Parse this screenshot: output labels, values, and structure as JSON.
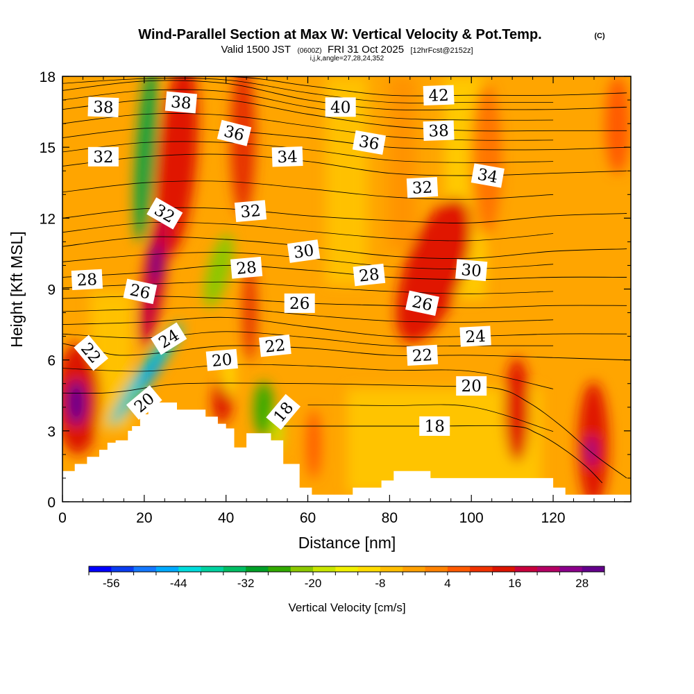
{
  "title": {
    "main": "Wind-Parallel Section at Max W: Vertical Velocity & Pot.Temp.",
    "copyright": "(C)",
    "sub_prefix": "Valid 1500 JST",
    "sub_utc": "(0600Z)",
    "sub_date": "FRI 31 Oct 2025",
    "sub_fcst": "[12hrFcst@2152z]",
    "indices": "i,j,k,angle=27,28,24,352"
  },
  "chart_data": {
    "type": "heatmap",
    "xlabel": "Distance [nm]",
    "ylabel": "Height [Kft MSL]",
    "xlim": [
      0,
      139
    ],
    "ylim": [
      0,
      18
    ],
    "xticks": [
      0,
      20,
      40,
      60,
      80,
      100,
      120
    ],
    "yticks": [
      0,
      3,
      6,
      9,
      12,
      15,
      18
    ],
    "colorbar": {
      "title": "Vertical Velocity [cm/s]",
      "min": -60,
      "max": 32,
      "step": 4,
      "ticks": [
        -56,
        -44,
        -32,
        -20,
        -8,
        4,
        16,
        28
      ],
      "colors": [
        "#0000ff",
        "#0a3cf0",
        "#1478ff",
        "#00aaff",
        "#00dcdc",
        "#00d2a0",
        "#00be64",
        "#00a028",
        "#32aa00",
        "#8cc800",
        "#c8e600",
        "#f0f000",
        "#ffdc00",
        "#ffbe00",
        "#ffa000",
        "#ff8200",
        "#ff5a00",
        "#f03200",
        "#dc1400",
        "#c8003c",
        "#b40064",
        "#8c008c",
        "#64008c"
      ]
    },
    "wind_shear_columns": [
      {
        "x": 4,
        "y": 4.2,
        "value": 28
      },
      {
        "x": 21,
        "y": 10,
        "value": 28
      },
      {
        "x": 28,
        "y": 14,
        "value": 16
      },
      {
        "x": 44,
        "y": 14,
        "value": 20
      },
      {
        "x": 91,
        "y": 9,
        "value": 16
      },
      {
        "x": 111,
        "y": 4,
        "value": 16
      },
      {
        "x": 130,
        "y": 2,
        "value": 28
      },
      {
        "x": 20,
        "y": 14,
        "value": -32
      },
      {
        "x": 23,
        "y": 5,
        "value": -40
      },
      {
        "x": 38,
        "y": 10,
        "value": -20
      },
      {
        "x": 49,
        "y": 4,
        "value": -28
      }
    ],
    "terrain_profile": [
      [
        0,
        1.3
      ],
      [
        3,
        1.3
      ],
      [
        3,
        1.6
      ],
      [
        6,
        1.6
      ],
      [
        6,
        1.9
      ],
      [
        9,
        1.9
      ],
      [
        9,
        2.2
      ],
      [
        11,
        2.2
      ],
      [
        11,
        2.5
      ],
      [
        13,
        2.5
      ],
      [
        13,
        2.6
      ],
      [
        16,
        2.6
      ],
      [
        16,
        3.0
      ],
      [
        17,
        3.0
      ],
      [
        17,
        3.2
      ],
      [
        19,
        3.2
      ],
      [
        19,
        3.7
      ],
      [
        21,
        3.7
      ],
      [
        21,
        4.0
      ],
      [
        22,
        4.0
      ],
      [
        22,
        4.2
      ],
      [
        28,
        4.2
      ],
      [
        28,
        3.9
      ],
      [
        35,
        3.9
      ],
      [
        35,
        3.6
      ],
      [
        38,
        3.6
      ],
      [
        38,
        3.3
      ],
      [
        40,
        3.3
      ],
      [
        40,
        3.1
      ],
      [
        42,
        3.1
      ],
      [
        42,
        2.3
      ],
      [
        45,
        2.3
      ],
      [
        45,
        2.9
      ],
      [
        51,
        2.9
      ],
      [
        51,
        2.6
      ],
      [
        54,
        2.6
      ],
      [
        54,
        1.6
      ],
      [
        58,
        1.6
      ],
      [
        58,
        0.6
      ],
      [
        61,
        0.6
      ],
      [
        61,
        0.3
      ],
      [
        71,
        0.3
      ],
      [
        71,
        0.6
      ],
      [
        78,
        0.6
      ],
      [
        78,
        0.9
      ],
      [
        81,
        0.9
      ],
      [
        81,
        1.3
      ],
      [
        90,
        1.3
      ],
      [
        90,
        1.0
      ],
      [
        120,
        1.0
      ],
      [
        120,
        0.6
      ],
      [
        123,
        0.6
      ],
      [
        123,
        0.3
      ],
      [
        139,
        0.3
      ]
    ],
    "isentropes": [
      {
        "theta": 18,
        "label_x": 91,
        "label_y": 3.2,
        "points": [
          [
            54,
            3.2
          ],
          [
            70,
            3.2
          ],
          [
            90,
            3.2
          ],
          [
            110,
            3.2
          ],
          [
            116,
            2.9
          ],
          [
            122,
            2.3
          ],
          [
            128,
            1.5
          ],
          [
            132,
            0.8
          ]
        ]
      },
      {
        "theta": 20,
        "label_x": 98,
        "label_y": 4.9,
        "points": [
          [
            0,
            4.6
          ],
          [
            10,
            4.6
          ],
          [
            16,
            4.7
          ],
          [
            30,
            5.0
          ],
          [
            60,
            5.0
          ],
          [
            90,
            4.9
          ],
          [
            106,
            4.8
          ],
          [
            114,
            4.2
          ],
          [
            122,
            3.2
          ],
          [
            130,
            2.0
          ],
          [
            138,
            1.0
          ]
        ]
      },
      {
        "theta": 22,
        "label_x": 88,
        "label_y": 6.2,
        "points": [
          [
            0,
            6.7
          ],
          [
            8,
            6.4
          ],
          [
            14,
            6.2
          ],
          [
            24,
            6.3
          ],
          [
            40,
            6.6
          ],
          [
            60,
            6.5
          ],
          [
            80,
            6.2
          ],
          [
            100,
            6.2
          ],
          [
            120,
            6.1
          ],
          [
            138,
            6.0
          ]
        ]
      },
      {
        "theta": 24,
        "label_x": 100,
        "label_y": 7.0,
        "points": [
          [
            0,
            7.5
          ],
          [
            20,
            7.6
          ],
          [
            40,
            7.8
          ],
          [
            60,
            7.4
          ],
          [
            80,
            7.0
          ],
          [
            100,
            7.0
          ],
          [
            120,
            7.1
          ],
          [
            138,
            7.1
          ]
        ]
      },
      {
        "theta": 26,
        "label_x": 58,
        "label_y": 8.4,
        "points": [
          [
            0,
            8.6
          ],
          [
            20,
            8.7
          ],
          [
            40,
            8.6
          ],
          [
            60,
            8.4
          ],
          [
            80,
            8.3
          ],
          [
            100,
            8.2
          ],
          [
            120,
            8.3
          ],
          [
            138,
            8.3
          ]
        ]
      },
      {
        "theta": 28,
        "label_x": 45,
        "label_y": 9.9,
        "points": [
          [
            0,
            9.5
          ],
          [
            20,
            9.7
          ],
          [
            40,
            10.0
          ],
          [
            60,
            9.8
          ],
          [
            80,
            9.5
          ],
          [
            100,
            9.4
          ],
          [
            120,
            9.5
          ],
          [
            138,
            9.5
          ]
        ]
      },
      {
        "theta": 30,
        "label_x": 59,
        "label_y": 10.6,
        "points": [
          [
            0,
            10.8
          ],
          [
            20,
            11.2
          ],
          [
            40,
            11.1
          ],
          [
            60,
            10.8
          ],
          [
            80,
            10.4
          ],
          [
            100,
            10.3
          ],
          [
            120,
            10.6
          ],
          [
            138,
            10.7
          ]
        ]
      },
      {
        "theta": 32,
        "label_x": 46,
        "label_y": 12.3,
        "points": [
          [
            0,
            12.0
          ],
          [
            20,
            12.4
          ],
          [
            40,
            12.4
          ],
          [
            60,
            12.1
          ],
          [
            80,
            11.9
          ],
          [
            100,
            11.8
          ],
          [
            120,
            12.1
          ],
          [
            138,
            12.2
          ]
        ]
      },
      {
        "theta": 34,
        "label_x": 55,
        "label_y": 14.6,
        "points": [
          [
            0,
            14.2
          ],
          [
            20,
            14.6
          ],
          [
            40,
            14.7
          ],
          [
            60,
            14.4
          ],
          [
            80,
            13.9
          ],
          [
            100,
            13.8
          ],
          [
            120,
            13.9
          ],
          [
            138,
            14.0
          ]
        ]
      },
      {
        "theta": 36,
        "label_x": 75,
        "label_y": 15.2,
        "points": [
          [
            0,
            15.4
          ],
          [
            20,
            15.8
          ],
          [
            40,
            15.7
          ],
          [
            60,
            15.4
          ],
          [
            80,
            15.0
          ],
          [
            100,
            14.9
          ],
          [
            120,
            14.9
          ],
          [
            138,
            15.0
          ]
        ]
      },
      {
        "theta": 38,
        "label_x": 92,
        "label_y": 15.7,
        "points": [
          [
            0,
            16.6
          ],
          [
            20,
            17.0
          ],
          [
            40,
            17.0
          ],
          [
            60,
            16.4
          ],
          [
            80,
            15.9
          ],
          [
            100,
            15.7
          ],
          [
            120,
            15.7
          ],
          [
            138,
            15.7
          ]
        ]
      },
      {
        "theta": 40,
        "label_x": 68,
        "label_y": 16.7,
        "points": [
          [
            0,
            17.4
          ],
          [
            20,
            17.8
          ],
          [
            40,
            17.7
          ],
          [
            60,
            17.0
          ],
          [
            80,
            16.6
          ],
          [
            100,
            16.6
          ],
          [
            120,
            16.6
          ],
          [
            138,
            16.7
          ]
        ]
      },
      {
        "theta": 42,
        "label_x": 92,
        "label_y": 17.2,
        "points": [
          [
            0,
            18.0
          ],
          [
            40,
            18.0
          ],
          [
            60,
            17.6
          ],
          [
            80,
            17.2
          ],
          [
            100,
            17.2
          ],
          [
            120,
            17.2
          ],
          [
            138,
            17.3
          ]
        ]
      }
    ],
    "contour_labels": [
      {
        "text": "38",
        "x": 10,
        "y": 16.7,
        "rot": 2
      },
      {
        "text": "38",
        "x": 29,
        "y": 16.9,
        "rot": 5
      },
      {
        "text": "36",
        "x": 42,
        "y": 15.6,
        "rot": 14
      },
      {
        "text": "40",
        "x": 68,
        "y": 16.7,
        "rot": 0
      },
      {
        "text": "42",
        "x": 92,
        "y": 17.2,
        "rot": -2
      },
      {
        "text": "32",
        "x": 10,
        "y": 14.6,
        "rot": 0
      },
      {
        "text": "34",
        "x": 55,
        "y": 14.6,
        "rot": -2
      },
      {
        "text": "36",
        "x": 75,
        "y": 15.2,
        "rot": 10
      },
      {
        "text": "38",
        "x": 92,
        "y": 15.7,
        "rot": -2
      },
      {
        "text": "34",
        "x": 104,
        "y": 13.8,
        "rot": 10
      },
      {
        "text": "32",
        "x": 88,
        "y": 13.3,
        "rot": -3
      },
      {
        "text": "32",
        "x": 25,
        "y": 12.2,
        "rot": 30
      },
      {
        "text": "32",
        "x": 46,
        "y": 12.3,
        "rot": -5
      },
      {
        "text": "30",
        "x": 59,
        "y": 10.6,
        "rot": -8
      },
      {
        "text": "30",
        "x": 100,
        "y": 9.8,
        "rot": 5
      },
      {
        "text": "28",
        "x": 6,
        "y": 9.4,
        "rot": -3
      },
      {
        "text": "28",
        "x": 45,
        "y": 9.9,
        "rot": -5
      },
      {
        "text": "28",
        "x": 75,
        "y": 9.6,
        "rot": -6
      },
      {
        "text": "26",
        "x": 19,
        "y": 8.9,
        "rot": 12
      },
      {
        "text": "26",
        "x": 58,
        "y": 8.4,
        "rot": 0
      },
      {
        "text": "26",
        "x": 88,
        "y": 8.4,
        "rot": 12
      },
      {
        "text": "24",
        "x": 26,
        "y": 6.9,
        "rot": -32
      },
      {
        "text": "24",
        "x": 101,
        "y": 7.0,
        "rot": -3
      },
      {
        "text": "22",
        "x": 7,
        "y": 6.3,
        "rot": 50
      },
      {
        "text": "22",
        "x": 52,
        "y": 6.6,
        "rot": -6
      },
      {
        "text": "22",
        "x": 88,
        "y": 6.2,
        "rot": -3
      },
      {
        "text": "20",
        "x": 39,
        "y": 6.0,
        "rot": -5
      },
      {
        "text": "20",
        "x": 100,
        "y": 4.9,
        "rot": 0
      },
      {
        "text": "20",
        "x": 20,
        "y": 4.2,
        "rot": -40
      },
      {
        "text": "18",
        "x": 54,
        "y": 3.8,
        "rot": -50
      },
      {
        "text": "18",
        "x": 91,
        "y": 3.2,
        "rot": 0
      }
    ]
  }
}
